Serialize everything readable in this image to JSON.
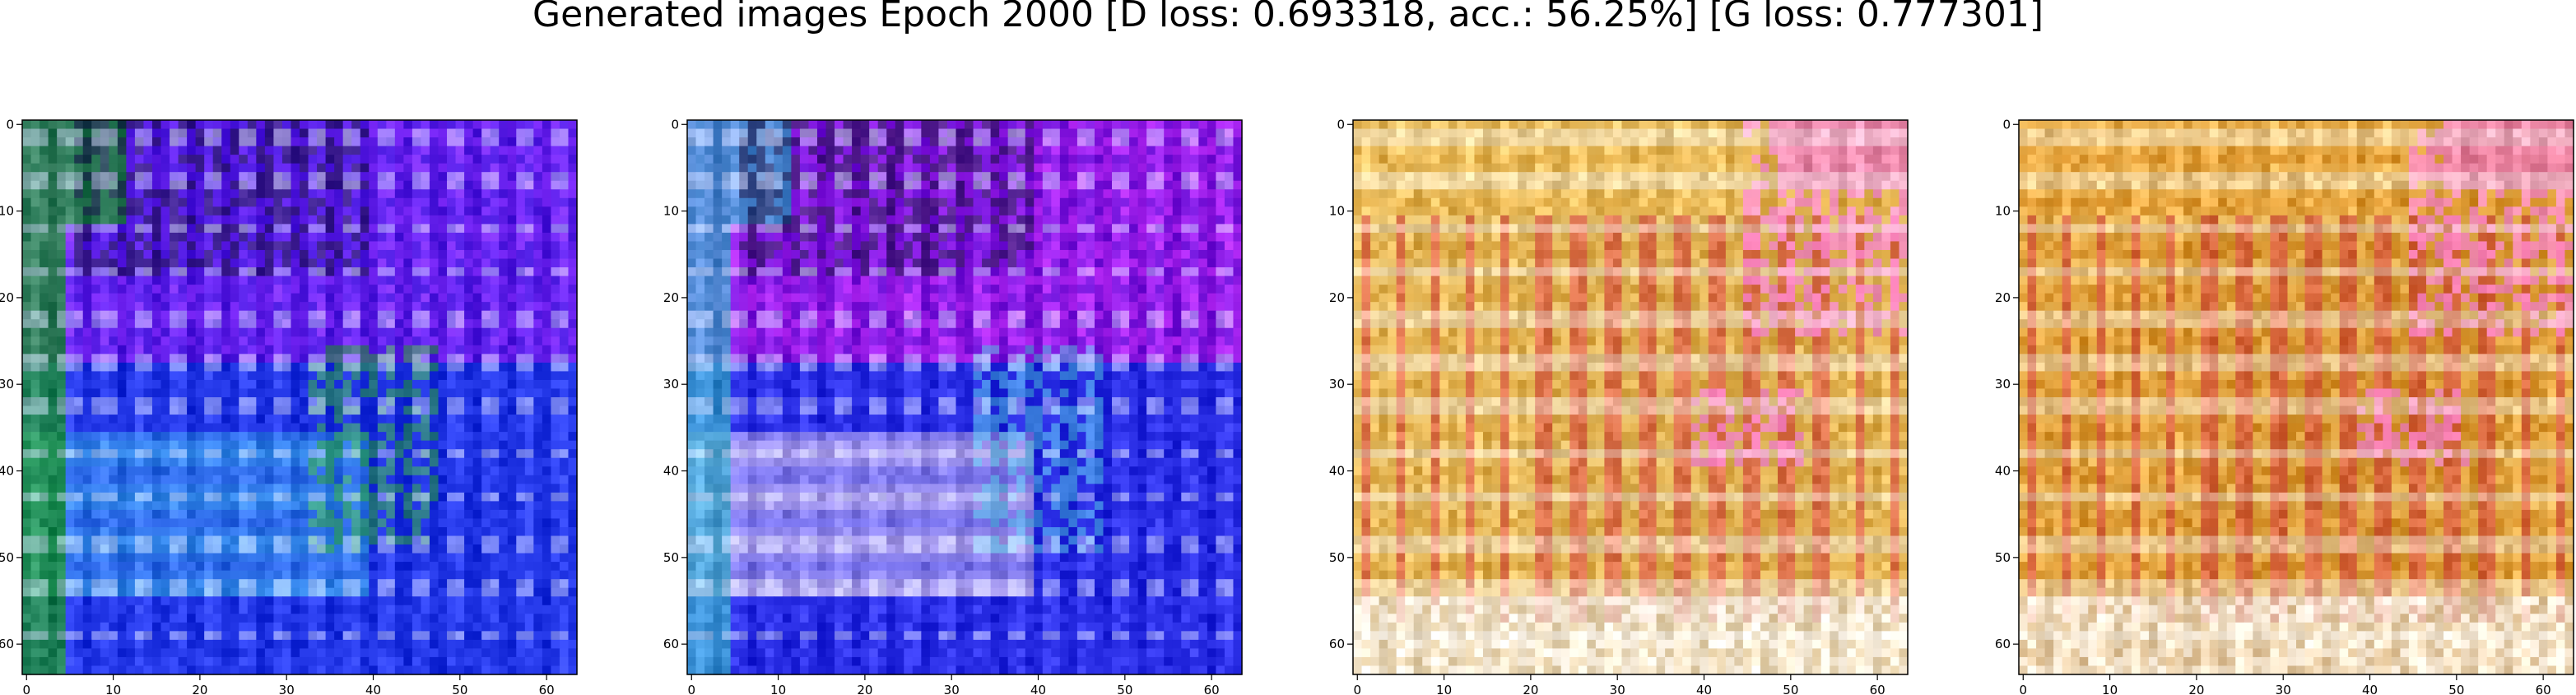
{
  "chart_data": {
    "type": "heatmap",
    "title": "Generated images Epoch 2000 [D loss: 0.693318, acc.: 56.25%] [G loss: 0.777301]",
    "image_size": 64,
    "xlim": [
      0,
      63
    ],
    "ylim": [
      63,
      0
    ],
    "x_ticks": [
      0,
      10,
      20,
      30,
      40,
      50,
      60
    ],
    "y_ticks": [
      0,
      10,
      20,
      30,
      40,
      50,
      60
    ],
    "grid": false,
    "panels": [
      {
        "palette": "blue",
        "dominant_colors": [
          "#2438e8",
          "#7a1cf0",
          "#3fa8f0",
          "#1f9a2a",
          "#0b0b40"
        ]
      },
      {
        "palette": "blue-magenta",
        "dominant_colors": [
          "#2b2fe6",
          "#b418e8",
          "#d9c7f5",
          "#3fb0d0",
          "#0b0b40"
        ]
      },
      {
        "palette": "warm",
        "dominant_colors": [
          "#e8b24a",
          "#f2e0a0",
          "#c0242a",
          "#ee70d8",
          "#f7f2ee"
        ]
      },
      {
        "palette": "warm",
        "dominant_colors": [
          "#e39a30",
          "#f1d888",
          "#b81f24",
          "#ec6fd2",
          "#f6efe8"
        ]
      }
    ]
  }
}
